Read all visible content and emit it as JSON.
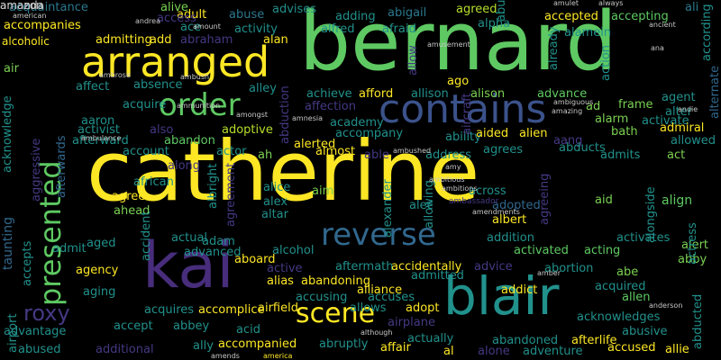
{
  "words": [
    {
      "text": "catherine",
      "color": "#fde725"
    },
    {
      "text": "bernard",
      "color": "#5ec962"
    },
    {
      "text": "blair",
      "color": "#21918c"
    },
    {
      "text": "kai",
      "color": "#472d7b"
    },
    {
      "text": "arranged",
      "color": "#fde725"
    },
    {
      "text": "presented",
      "color": "#5ec962"
    },
    {
      "text": "contains",
      "color": "#3b528b"
    },
    {
      "text": "reverse",
      "color": "#31688e"
    },
    {
      "text": "order",
      "color": "#5ec962"
    },
    {
      "text": "scene",
      "color": "#fde725"
    },
    {
      "text": "roxy",
      "color": "#443983"
    },
    {
      "text": "taunting",
      "color": "#31688e"
    },
    {
      "text": "acknowledge",
      "color": "#21918c"
    },
    {
      "text": "accompanies",
      "color": "#fde725"
    },
    {
      "text": "acquaintance",
      "color": "#2a788e"
    },
    {
      "text": "alive",
      "color": "#7ad151"
    },
    {
      "text": "adult",
      "color": "#fde725"
    },
    {
      "text": "abuse",
      "color": "#2a788e"
    },
    {
      "text": "advises",
      "color": "#21918c"
    },
    {
      "text": "adding",
      "color": "#21918c"
    },
    {
      "text": "abigail",
      "color": "#2a788e"
    },
    {
      "text": "agreed",
      "color": "#b5de2b"
    },
    {
      "text": "alpha",
      "color": "#21918c"
    },
    {
      "text": "accepted",
      "color": "#fde725"
    },
    {
      "text": "accepting",
      "color": "#5ec962"
    },
    {
      "text": "ali",
      "color": "#2a788e"
    },
    {
      "text": "alamein",
      "color": "#21918c"
    },
    {
      "text": "according",
      "color": "#21918c"
    },
    {
      "text": "alternate",
      "color": "#31688e"
    },
    {
      "text": "alcoholic",
      "color": "#fde725"
    },
    {
      "text": "admitting",
      "color": "#fde725"
    },
    {
      "text": "add",
      "color": "#fde725"
    },
    {
      "text": "abraham",
      "color": "#443983"
    },
    {
      "text": "alan",
      "color": "#fde725"
    },
    {
      "text": "activity",
      "color": "#21918c"
    },
    {
      "text": "alfred",
      "color": "#21918c"
    },
    {
      "text": "afraid",
      "color": "#21918c"
    },
    {
      "text": "air",
      "color": "#7ad151"
    },
    {
      "text": "affect",
      "color": "#21918c"
    },
    {
      "text": "absence",
      "color": "#21918c"
    },
    {
      "text": "alley",
      "color": "#21918c"
    },
    {
      "text": "ago",
      "color": "#fde725"
    },
    {
      "text": "achieve",
      "color": "#21918c"
    },
    {
      "text": "afford",
      "color": "#fde725"
    },
    {
      "text": "allison",
      "color": "#21918c"
    },
    {
      "text": "alison",
      "color": "#7ad151"
    },
    {
      "text": "advance",
      "color": "#5ec962"
    },
    {
      "text": "agent",
      "color": "#21918c"
    },
    {
      "text": "alter",
      "color": "#21918c"
    },
    {
      "text": "aaron",
      "color": "#21918c"
    },
    {
      "text": "acquire",
      "color": "#21918c"
    },
    {
      "text": "affection",
      "color": "#443983"
    },
    {
      "text": "ad",
      "color": "#7ad151"
    },
    {
      "text": "frame",
      "color": "#7ad151"
    },
    {
      "text": "activate",
      "color": "#21918c"
    },
    {
      "text": "activist",
      "color": "#21918c"
    },
    {
      "text": "adoptive",
      "color": "#b5de2b"
    },
    {
      "text": "academy",
      "color": "#21918c"
    },
    {
      "text": "alarm",
      "color": "#7ad151"
    },
    {
      "text": "afterward",
      "color": "#21918c"
    },
    {
      "text": "abandon",
      "color": "#5ec962"
    },
    {
      "text": "accompany",
      "color": "#21918c"
    },
    {
      "text": "ability",
      "color": "#21918c"
    },
    {
      "text": "aided",
      "color": "#fde725"
    },
    {
      "text": "alien",
      "color": "#fde725"
    },
    {
      "text": "aang",
      "color": "#443983"
    },
    {
      "text": "bath",
      "color": "#7ad151"
    },
    {
      "text": "admiral",
      "color": "#fde725"
    },
    {
      "text": "allowed",
      "color": "#21918c"
    },
    {
      "text": "account",
      "color": "#21918c"
    },
    {
      "text": "actor",
      "color": "#21918c"
    },
    {
      "text": "ah",
      "color": "#7ad151"
    },
    {
      "text": "almost",
      "color": "#fde725"
    },
    {
      "text": "alerted",
      "color": "#fde725"
    },
    {
      "text": "able",
      "color": "#443983"
    },
    {
      "text": "address",
      "color": "#21918c"
    },
    {
      "text": "agrees",
      "color": "#21918c"
    },
    {
      "text": "abducts",
      "color": "#21918c"
    },
    {
      "text": "admits",
      "color": "#21918c"
    },
    {
      "text": "act",
      "color": "#7ad151"
    },
    {
      "text": "african",
      "color": "#21918c"
    },
    {
      "text": "agree",
      "color": "#fde725"
    },
    {
      "text": "ahead",
      "color": "#7ad151"
    },
    {
      "text": "alice",
      "color": "#21918c"
    },
    {
      "text": "alex",
      "color": "#21918c"
    },
    {
      "text": "altar",
      "color": "#21918c"
    },
    {
      "text": "aim",
      "color": "#7ad151"
    },
    {
      "text": "alec",
      "color": "#21918c"
    },
    {
      "text": "across",
      "color": "#21918c"
    },
    {
      "text": "adopted",
      "color": "#31688e"
    },
    {
      "text": "albert",
      "color": "#fde725"
    },
    {
      "text": "aid",
      "color": "#7ad151"
    },
    {
      "text": "align",
      "color": "#5ec962"
    },
    {
      "text": "actual",
      "color": "#21918c"
    },
    {
      "text": "adam",
      "color": "#21918c"
    },
    {
      "text": "advanced",
      "color": "#21918c"
    },
    {
      "text": "aged",
      "color": "#21918c"
    },
    {
      "text": "admit",
      "color": "#21918c"
    },
    {
      "text": "aboard",
      "color": "#fde725"
    },
    {
      "text": "alcohol",
      "color": "#21918c"
    },
    {
      "text": "addition",
      "color": "#21918c"
    },
    {
      "text": "activates",
      "color": "#21918c"
    },
    {
      "text": "alert",
      "color": "#7ad151"
    },
    {
      "text": "activated",
      "color": "#5ec962"
    },
    {
      "text": "acting",
      "color": "#5ec962"
    },
    {
      "text": "abby",
      "color": "#7ad151"
    },
    {
      "text": "agency",
      "color": "#fde725"
    },
    {
      "text": "active",
      "color": "#443983"
    },
    {
      "text": "aftermath",
      "color": "#21918c"
    },
    {
      "text": "accidentally",
      "color": "#fde725"
    },
    {
      "text": "advice",
      "color": "#443983"
    },
    {
      "text": "abortion",
      "color": "#21918c"
    },
    {
      "text": "abe",
      "color": "#7ad151"
    },
    {
      "text": "alias",
      "color": "#fde725"
    },
    {
      "text": "abandoning",
      "color": "#fde725"
    },
    {
      "text": "admitted",
      "color": "#21918c"
    },
    {
      "text": "acquired",
      "color": "#21918c"
    },
    {
      "text": "aging",
      "color": "#21918c"
    },
    {
      "text": "alliance",
      "color": "#fde725"
    },
    {
      "text": "addict",
      "color": "#fde725"
    },
    {
      "text": "allen",
      "color": "#5ec962"
    },
    {
      "text": "accusing",
      "color": "#21918c"
    },
    {
      "text": "accuses",
      "color": "#21918c"
    },
    {
      "text": "acquires",
      "color": "#21918c"
    },
    {
      "text": "accomplice",
      "color": "#fde725"
    },
    {
      "text": "airfield",
      "color": "#fde725"
    },
    {
      "text": "allows",
      "color": "#21918c"
    },
    {
      "text": "adopt",
      "color": "#fde725"
    },
    {
      "text": "abducted",
      "color": "#21918c"
    },
    {
      "text": "advantage",
      "color": "#21918c"
    },
    {
      "text": "accept",
      "color": "#21918c"
    },
    {
      "text": "abbey",
      "color": "#21918c"
    },
    {
      "text": "acid",
      "color": "#21918c"
    },
    {
      "text": "airplane",
      "color": "#443983"
    },
    {
      "text": "acknowledges",
      "color": "#21918c"
    },
    {
      "text": "abusive",
      "color": "#21918c"
    },
    {
      "text": "ally",
      "color": "#21918c"
    },
    {
      "text": "accompanied",
      "color": "#fde725"
    },
    {
      "text": "abruptly",
      "color": "#21918c"
    },
    {
      "text": "actually",
      "color": "#21918c"
    },
    {
      "text": "abandoned",
      "color": "#21918c"
    },
    {
      "text": "afterlife",
      "color": "#fde725"
    },
    {
      "text": "abused",
      "color": "#21918c"
    },
    {
      "text": "additional",
      "color": "#443983"
    },
    {
      "text": "affair",
      "color": "#fde725"
    },
    {
      "text": "al",
      "color": "#fde725"
    },
    {
      "text": "alone",
      "color": "#443983"
    },
    {
      "text": "adventure",
      "color": "#21918c"
    },
    {
      "text": "accused",
      "color": "#fde725"
    },
    {
      "text": "allie",
      "color": "#fde725"
    },
    {
      "text": "airport",
      "color": "#21918c"
    },
    {
      "text": "accepts",
      "color": "#21918c"
    },
    {
      "text": "aggressive",
      "color": "#443983"
    },
    {
      "text": "afterwards",
      "color": "#31688e"
    },
    {
      "text": "abduction",
      "color": "#443983"
    },
    {
      "text": "aircraft",
      "color": "#443983"
    },
    {
      "text": "allowing",
      "color": "#21918c"
    },
    {
      "text": "alexander",
      "color": "#21918c"
    },
    {
      "text": "albright",
      "color": "#21918c"
    },
    {
      "text": "agreement",
      "color": "#443983"
    },
    {
      "text": "accident",
      "color": "#21918c"
    },
    {
      "text": "also",
      "color": "#443983"
    },
    {
      "text": "along",
      "color": "#443983"
    },
    {
      "text": "access",
      "color": "#443983"
    },
    {
      "text": "ace",
      "color": "#21918c"
    },
    {
      "text": "allow",
      "color": "#443983"
    },
    {
      "text": "abu",
      "color": "#21918c"
    },
    {
      "text": "already",
      "color": "#21918c"
    },
    {
      "text": "action",
      "color": "#21918c"
    },
    {
      "text": "actress",
      "color": "#21918c"
    },
    {
      "text": "agreeing",
      "color": "#443983"
    },
    {
      "text": "alongside",
      "color": "#21918c"
    },
    {
      "text": "ambush",
      "color": "#c8c8c8"
    },
    {
      "text": "ambrose",
      "color": "#c8c8c8"
    },
    {
      "text": "ammunition",
      "color": "#c8c8c8"
    },
    {
      "text": "amongst",
      "color": "#c8c8c8"
    },
    {
      "text": "amnesia",
      "color": "#c8c8c8"
    },
    {
      "text": "ambushed",
      "color": "#c8c8c8"
    },
    {
      "text": "ambitious",
      "color": "#c8c8c8"
    },
    {
      "text": "ambitions",
      "color": "#c8c8c8"
    },
    {
      "text": "amy",
      "color": "#c8c8c8"
    },
    {
      "text": "ambassador",
      "color": "#443983"
    },
    {
      "text": "amendments",
      "color": "#c8c8c8"
    },
    {
      "text": "ambulance",
      "color": "#c8c8c8"
    },
    {
      "text": "although",
      "color": "#c8c8c8"
    },
    {
      "text": "anderson",
      "color": "#c8c8c8"
    },
    {
      "text": "amends",
      "color": "#c8c8c8"
    },
    {
      "text": "america",
      "color": "#fde725"
    },
    {
      "text": "american",
      "color": "#c8c8c8"
    },
    {
      "text": "amount",
      "color": "#c8c8c8"
    },
    {
      "text": "andrea",
      "color": "#c8c8c8"
    },
    {
      "text": "amulet",
      "color": "#c8c8c8"
    },
    {
      "text": "always",
      "color": "#c8c8c8"
    },
    {
      "text": "ancient",
      "color": "#c8c8c8"
    },
    {
      "text": "amusement",
      "color": "#c8c8c8"
    },
    {
      "text": "ana",
      "color": "#c8c8c8"
    },
    {
      "text": "andie",
      "color": "#c8c8c8"
    },
    {
      "text": "amazing",
      "color": "#c8c8c8"
    },
    {
      "text": "ambiguous",
      "color": "#c8c8c8"
    },
    {
      "text": "amber",
      "color": "#c8c8c8"
    },
    {
      "text": "amanda",
      "color": "#c8c8c8"
    },
    {
      "text": "amazon",
      "color": "#c8c8c8"
    }
  ]
}
